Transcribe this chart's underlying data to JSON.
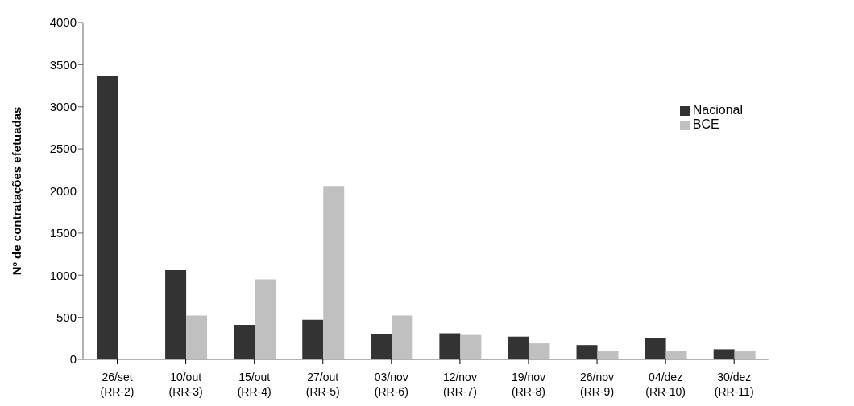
{
  "chart_data": {
    "type": "bar",
    "ylabel": "Nº de contratações efetuadas",
    "categories": [
      "26/set\n(RR-2)",
      "10/out\n(RR-3)",
      "15/out\n(RR-4)",
      "27/out\n(RR-5)",
      "03/nov\n(RR-6)",
      "12/nov\n(RR-7)",
      "19/nov\n(RR-8)",
      "26/nov\n(RR-9)",
      "04/dez\n(RR-10)",
      "30/dez\n(RR-11)"
    ],
    "series": [
      {
        "name": "Nacional",
        "color": "#333333",
        "values": [
          3360,
          1060,
          410,
          470,
          300,
          310,
          270,
          170,
          250,
          120
        ]
      },
      {
        "name": "BCE",
        "color": "#c0c0c0",
        "values": [
          0,
          520,
          950,
          2060,
          520,
          290,
          190,
          100,
          100,
          100
        ]
      }
    ],
    "ylim": [
      0,
      4000
    ],
    "yticks": [
      0,
      500,
      1000,
      1500,
      2000,
      2500,
      3000,
      3500,
      4000
    ],
    "grid": false,
    "legend": "top right"
  }
}
